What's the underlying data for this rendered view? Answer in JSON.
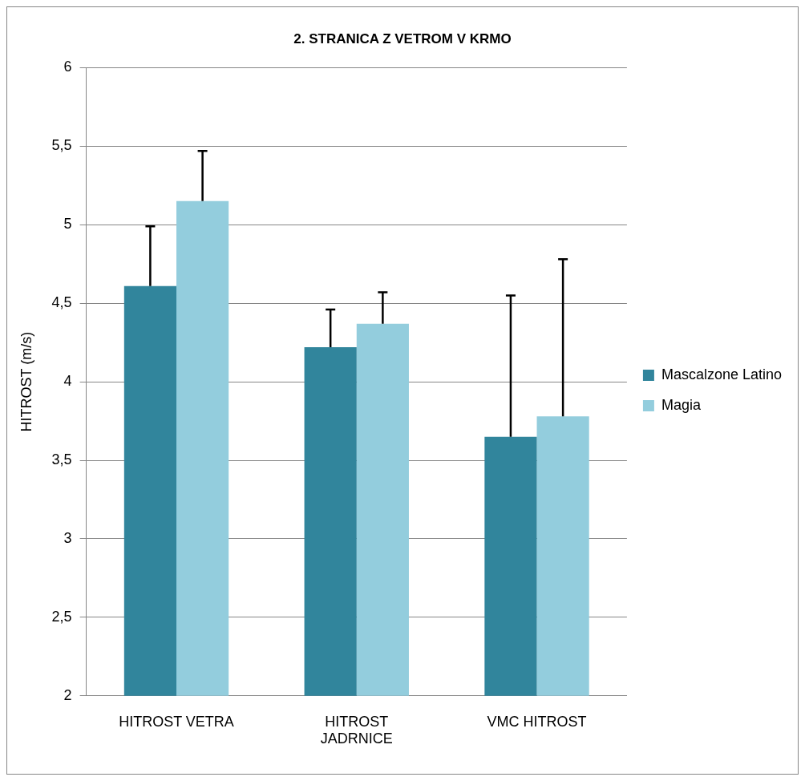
{
  "chart_data": {
    "type": "bar",
    "title": "2. STRANICA Z VETROM V KRMO",
    "ylabel": "HITROST (m/s)",
    "categories": [
      "HITROST VETRA",
      "HITROST JADRNICE",
      "VMC HITROST"
    ],
    "series": [
      {
        "name": "Mascalzone Latino",
        "color": "#31859c",
        "values": [
          4.61,
          4.22,
          3.65
        ],
        "errors": [
          [
            4.61,
            4.99
          ],
          [
            4.22,
            4.46
          ],
          [
            3.65,
            4.55
          ]
        ]
      },
      {
        "name": "Magia",
        "color": "#93cddd",
        "values": [
          5.15,
          4.37,
          3.78
        ],
        "errors": [
          [
            5.15,
            5.47
          ],
          [
            4.37,
            4.57
          ],
          [
            3.78,
            4.78
          ]
        ]
      }
    ],
    "ylim": [
      2,
      6
    ],
    "yticks": [
      2,
      {
        "value": 2.5,
        "label": "2,5"
      },
      3,
      {
        "value": 3.5,
        "label": "3,5"
      },
      4,
      {
        "value": 4.5,
        "label": "4,5"
      },
      5,
      {
        "value": 5.5,
        "label": "5,5"
      },
      6
    ],
    "grid": "y",
    "legend": "right"
  }
}
